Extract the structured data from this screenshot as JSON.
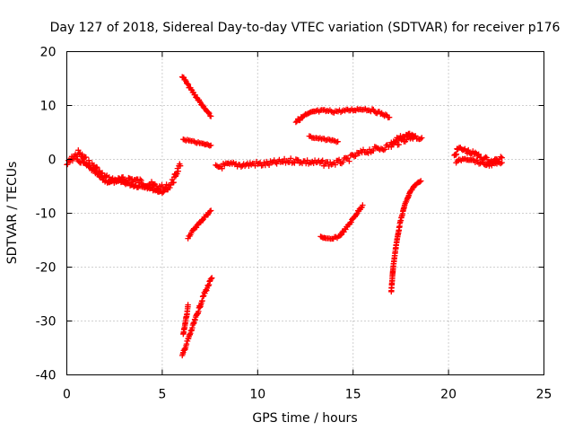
{
  "chart_data": {
    "type": "scatter",
    "title": "Day 127 of 2018, Sidereal Day-to-day VTEC variation (SDTVAR) for receiver p176",
    "xlabel": "GPS time / hours",
    "ylabel": "SDTVAR / TECUs",
    "xlim": [
      0,
      25
    ],
    "ylim": [
      -40,
      20
    ],
    "xticks": [
      "0",
      "5",
      "10",
      "15",
      "20",
      "25"
    ],
    "yticks": [
      "20",
      "10",
      "0",
      "-10",
      "-20",
      "-30",
      "-40"
    ],
    "grid": true,
    "marker": "plus",
    "color": "#ff0000",
    "segments": [
      {
        "points": [
          [
            0.0,
            -1.0
          ],
          [
            0.3,
            0.2
          ],
          [
            0.6,
            1.2
          ],
          [
            0.9,
            0.2
          ],
          [
            1.2,
            -0.8
          ],
          [
            1.5,
            -1.5
          ],
          [
            1.8,
            -2.8
          ],
          [
            2.1,
            -3.5
          ],
          [
            2.4,
            -3.8
          ],
          [
            2.7,
            -3.9
          ],
          [
            3.0,
            -3.8
          ],
          [
            3.3,
            -3.6
          ],
          [
            3.6,
            -3.9
          ],
          [
            3.9,
            -4.2
          ],
          [
            4.2,
            -4.5
          ],
          [
            4.5,
            -4.8
          ],
          [
            4.8,
            -5.2
          ],
          [
            5.1,
            -5.4
          ],
          [
            5.4,
            -4.8
          ],
          [
            5.6,
            -3.8
          ],
          [
            5.8,
            -2.0
          ],
          [
            5.95,
            -1.2
          ]
        ],
        "spread": 1.2
      },
      {
        "points": [
          [
            0.5,
            -0.2
          ],
          [
            0.8,
            -0.5
          ],
          [
            1.1,
            -1.3
          ],
          [
            1.4,
            -2.2
          ],
          [
            1.7,
            -3.2
          ],
          [
            2.0,
            -4.0
          ],
          [
            2.3,
            -4.2
          ],
          [
            2.6,
            -4.1
          ],
          [
            2.9,
            -4.2
          ],
          [
            3.2,
            -4.5
          ],
          [
            3.5,
            -4.8
          ],
          [
            3.8,
            -5.0
          ],
          [
            4.1,
            -5.0
          ],
          [
            4.4,
            -5.3
          ],
          [
            4.7,
            -5.8
          ],
          [
            5.0,
            -6.0
          ],
          [
            5.3,
            -5.5
          ]
        ],
        "spread": 0.6
      },
      {
        "points": [
          [
            6.05,
            15.5
          ],
          [
            6.4,
            13.5
          ],
          [
            6.8,
            11.5
          ],
          [
            7.2,
            9.5
          ],
          [
            7.55,
            8.0
          ]
        ],
        "spread": 0.4
      },
      {
        "points": [
          [
            6.1,
            3.7
          ],
          [
            6.6,
            3.3
          ],
          [
            7.1,
            2.9
          ],
          [
            7.55,
            2.6
          ]
        ],
        "spread": 0.3
      },
      {
        "points": [
          [
            6.35,
            -14.5
          ],
          [
            6.7,
            -12.8
          ],
          [
            7.1,
            -11.2
          ],
          [
            7.55,
            -9.5
          ]
        ],
        "spread": 0.4
      },
      {
        "points": [
          [
            6.1,
            -32.5
          ],
          [
            6.2,
            -30.5
          ],
          [
            6.3,
            -28.5
          ],
          [
            6.35,
            -27.0
          ]
        ],
        "spread": 0.4
      },
      {
        "points": [
          [
            6.05,
            -36.5
          ],
          [
            6.4,
            -33.0
          ],
          [
            6.8,
            -29.0
          ],
          [
            7.2,
            -25.0
          ],
          [
            7.6,
            -22.0
          ]
        ],
        "spread": 0.6
      },
      {
        "points": [
          [
            7.8,
            -1.5
          ],
          [
            8.2,
            -1.2
          ],
          [
            8.6,
            -1.0
          ],
          [
            9.0,
            -1.0
          ],
          [
            9.4,
            -1.0
          ],
          [
            9.8,
            -0.8
          ],
          [
            10.2,
            -0.9
          ],
          [
            10.6,
            -0.8
          ],
          [
            11.0,
            -0.6
          ],
          [
            11.4,
            -0.4
          ],
          [
            11.8,
            -0.2
          ],
          [
            12.2,
            -0.3
          ],
          [
            12.6,
            -0.5
          ],
          [
            13.0,
            -0.6
          ],
          [
            13.4,
            -0.7
          ],
          [
            13.8,
            -0.8
          ],
          [
            14.2,
            -0.6
          ],
          [
            14.6,
            -0.2
          ],
          [
            15.0,
            0.5
          ],
          [
            15.4,
            1.2
          ],
          [
            15.8,
            1.6
          ],
          [
            16.2,
            1.9
          ],
          [
            16.6,
            2.2
          ],
          [
            17.0,
            2.6
          ],
          [
            17.4,
            3.2
          ],
          [
            17.8,
            3.9
          ],
          [
            18.2,
            4.2
          ],
          [
            18.6,
            4.0
          ]
        ],
        "spread": 1.0
      },
      {
        "points": [
          [
            12.0,
            7.0
          ],
          [
            12.5,
            8.2
          ],
          [
            13.0,
            8.9
          ],
          [
            13.5,
            9.0
          ],
          [
            14.0,
            8.9
          ],
          [
            14.5,
            9.0
          ],
          [
            15.0,
            9.2
          ],
          [
            15.5,
            9.4
          ],
          [
            16.0,
            9.1
          ],
          [
            16.5,
            8.5
          ],
          [
            16.9,
            7.8
          ]
        ],
        "spread": 0.5
      },
      {
        "points": [
          [
            12.7,
            4.2
          ],
          [
            13.2,
            3.9
          ],
          [
            13.7,
            3.6
          ],
          [
            14.2,
            3.3
          ]
        ],
        "spread": 0.3
      },
      {
        "points": [
          [
            13.3,
            -14.3
          ],
          [
            13.6,
            -14.8
          ],
          [
            13.9,
            -14.8
          ],
          [
            14.3,
            -14.2
          ],
          [
            14.7,
            -12.5
          ],
          [
            15.1,
            -10.5
          ],
          [
            15.5,
            -8.5
          ]
        ],
        "spread": 0.4
      },
      {
        "points": [
          [
            17.0,
            -24.5
          ],
          [
            17.1,
            -20.0
          ],
          [
            17.25,
            -16.0
          ],
          [
            17.45,
            -12.0
          ],
          [
            17.7,
            -8.5
          ],
          [
            18.0,
            -6.0
          ],
          [
            18.3,
            -4.6
          ],
          [
            18.55,
            -4.0
          ]
        ],
        "spread": 0.3
      },
      {
        "points": [
          [
            17.0,
            3.0
          ],
          [
            17.3,
            3.8
          ],
          [
            17.6,
            4.3
          ],
          [
            17.9,
            4.6
          ],
          [
            18.2,
            4.3
          ]
        ],
        "spread": 0.6
      },
      {
        "points": [
          [
            20.3,
            0.5
          ],
          [
            20.5,
            2.0
          ],
          [
            20.8,
            1.8
          ],
          [
            21.1,
            1.3
          ],
          [
            21.4,
            1.0
          ],
          [
            21.7,
            0.4
          ],
          [
            22.0,
            0.0
          ],
          [
            22.3,
            -0.4
          ],
          [
            22.6,
            0.0
          ],
          [
            22.8,
            0.3
          ]
        ],
        "spread": 0.8
      },
      {
        "points": [
          [
            20.4,
            -0.5
          ],
          [
            20.8,
            0.2
          ],
          [
            21.2,
            0.0
          ],
          [
            21.6,
            -0.6
          ],
          [
            22.0,
            -1.0
          ],
          [
            22.4,
            -0.9
          ],
          [
            22.8,
            -0.6
          ]
        ],
        "spread": 0.5
      }
    ]
  }
}
